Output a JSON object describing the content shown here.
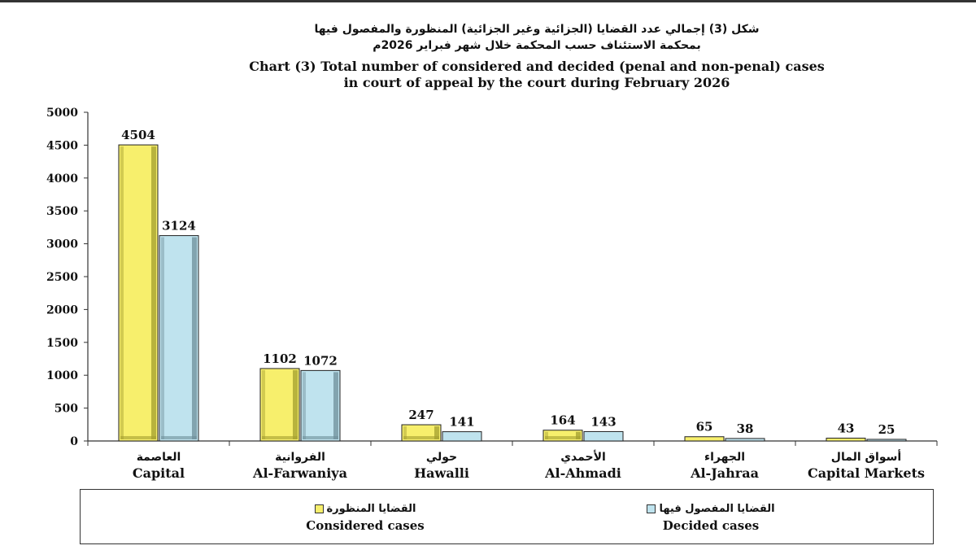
{
  "chart_data": {
    "type": "bar",
    "title_ar_line1": "شكل (3) إجمالي عدد القضايا (الجزائية وغير الجزائية) المنظورة والمفصول فيها",
    "title_ar_line2": "بمحكمة الاستئناف حسب المحكمة خلال شهر فبراير 2026م",
    "title_en_line1": "Chart (3) Total number of considered and decided (penal and non-penal) cases",
    "title_en_line2": "in court of appeal by the court during February 2026",
    "categories": [
      {
        "ar": "العاصمة",
        "en": "Capital"
      },
      {
        "ar": "الفروانية",
        "en": "Al-Farwaniya"
      },
      {
        "ar": "حولي",
        "en": "Hawalli"
      },
      {
        "ar": "الأحمدي",
        "en": "Al-Ahmadi"
      },
      {
        "ar": "الجهراء",
        "en": "Al-Jahraa"
      },
      {
        "ar": "أسواق المال",
        "en": "Capital Markets"
      }
    ],
    "series": [
      {
        "name_ar": "القضايا المنظورة",
        "name_en": "Considered cases",
        "color": "#f7ef6c",
        "side": "#a39f2e",
        "values": [
          4504,
          1102,
          247,
          164,
          65,
          43
        ]
      },
      {
        "name_ar": "القضايا المفصول فيها",
        "name_en": "Decided cases",
        "color": "#bfe3ee",
        "side": "#6e8f99",
        "values": [
          3124,
          1072,
          141,
          143,
          38,
          25
        ]
      }
    ],
    "ylim": [
      0,
      5000
    ],
    "yticks": [
      0,
      500,
      1000,
      1500,
      2000,
      2500,
      3000,
      3500,
      4000,
      4500,
      5000
    ],
    "grid": false,
    "legend_position": "bottom"
  }
}
